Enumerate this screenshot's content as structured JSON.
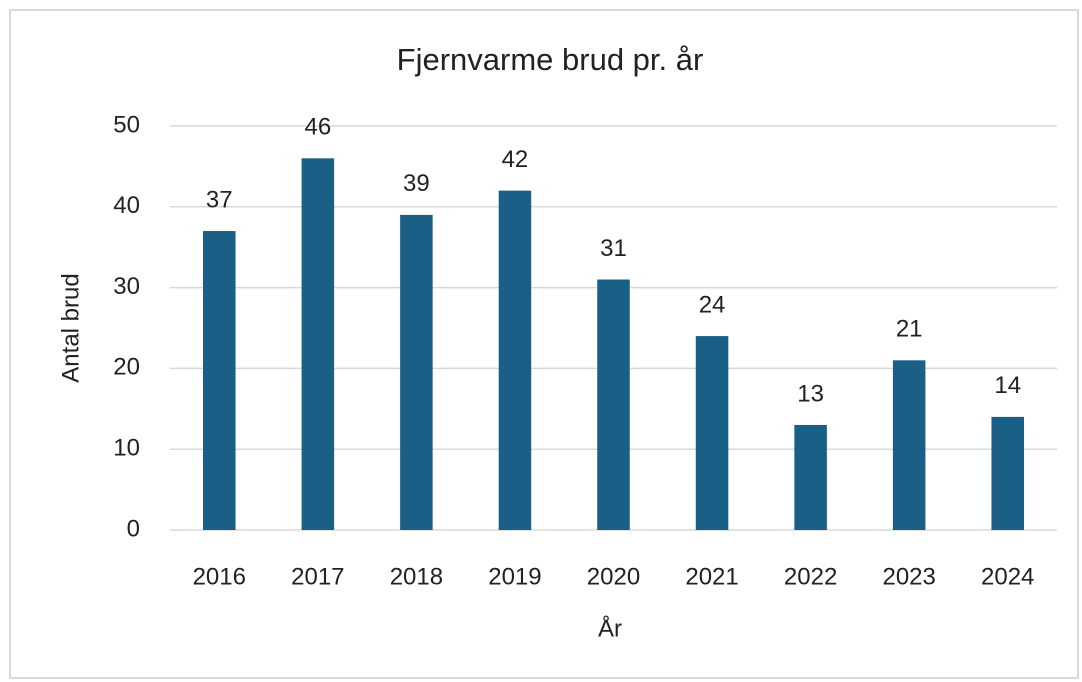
{
  "chart_data": {
    "type": "bar",
    "title": "Fjernvarme brud pr. år",
    "x_label": "År",
    "y_label": "Antal brud",
    "categories": [
      "2016",
      "2017",
      "2018",
      "2019",
      "2020",
      "2021",
      "2022",
      "2023",
      "2024"
    ],
    "values": [
      37,
      46,
      39,
      42,
      31,
      24,
      13,
      21,
      14
    ],
    "color": "#1a5f85",
    "ylim": [
      0,
      50
    ],
    "yticks": [
      0,
      10,
      20,
      30,
      40,
      50
    ],
    "grid": true
  }
}
